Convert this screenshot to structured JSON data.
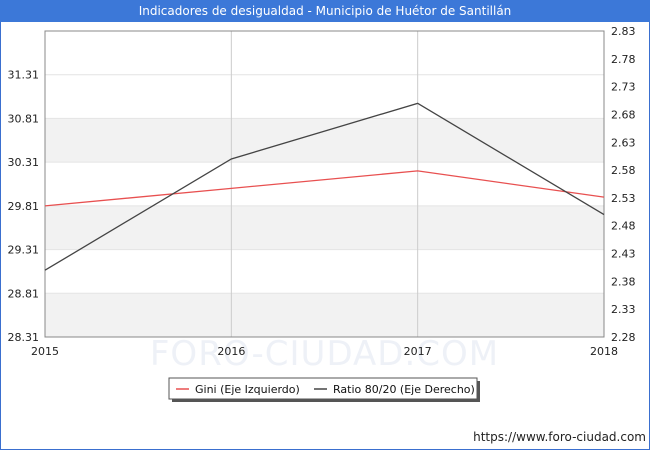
{
  "header": {
    "title": "Indicadores de desigualdad - Municipio de Huétor de Santillán"
  },
  "watermark": "FORO-CIUDAD.COM",
  "source": "https://www.foro-ciudad.com",
  "colors": {
    "title_bg": "#3c78d8",
    "gini": "#e85050",
    "ratio": "#444444",
    "band": "#f2f2f2",
    "grid": "#cccccc"
  },
  "chart_data": {
    "type": "line",
    "title": "Indicadores de desigualdad - Municipio de Huétor de Santillán",
    "categories": [
      "2015",
      "2016",
      "2017",
      "2018"
    ],
    "y_left": {
      "ylim": [
        28.31,
        31.81
      ],
      "ticks": [
        "28.31",
        "28.81",
        "29.31",
        "29.81",
        "30.31",
        "30.81",
        "31.31"
      ]
    },
    "y_right": {
      "ylim": [
        2.28,
        2.83
      ],
      "ticks": [
        "2.28",
        "2.33",
        "2.38",
        "2.43",
        "2.48",
        "2.53",
        "2.58",
        "2.63",
        "2.68",
        "2.73",
        "2.78",
        "2.83"
      ]
    },
    "series": [
      {
        "name": "Gini (Eje Izquierdo)",
        "axis": "left",
        "color": "#e85050",
        "values": [
          29.81,
          30.01,
          30.21,
          29.91
        ]
      },
      {
        "name": "Ratio 80/20 (Eje Derecho)",
        "axis": "right",
        "color": "#444444",
        "values": [
          2.4,
          2.6,
          2.7,
          2.5
        ]
      }
    ],
    "legend": "bottom-center",
    "grid": true
  }
}
